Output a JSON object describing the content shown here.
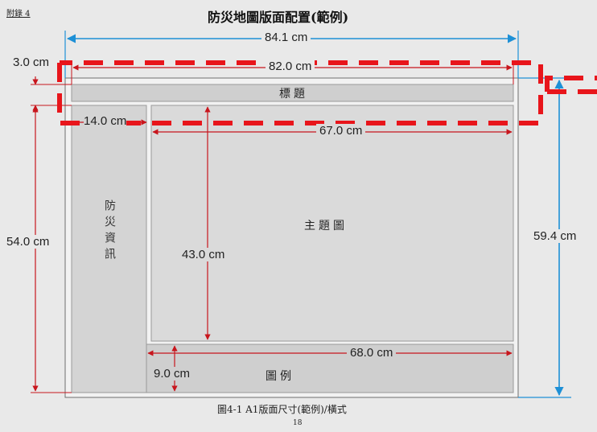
{
  "header": {
    "annex_label": "附錄 4",
    "title": "防災地圖版面配置(範例)"
  },
  "dimensions": {
    "outer_width": "84.1 cm",
    "inner_width": "82.0 cm",
    "title_band_height": "3.0 cm",
    "info_panel_width": "14.0 cm",
    "main_map_width": "67.0 cm",
    "left_height": "54.0 cm",
    "main_map_height": "43.0 cm",
    "legend_width": "68.0 cm",
    "legend_height": "9.0 cm",
    "outer_height": "59.4 cm"
  },
  "panels": {
    "title": "標題",
    "info": "防災資訊",
    "main_map": "主題圖",
    "legend": "圖例"
  },
  "caption": "圖4-1 A1版面尺寸(範例)/橫式",
  "page_number": "18",
  "colors": {
    "dimension_blue": "#1e90d6",
    "dimension_red": "#c8161d",
    "highlight_red": "#e8151b",
    "panel_fill": "#cfcfcf",
    "panel_border": "#9a9a9a"
  }
}
